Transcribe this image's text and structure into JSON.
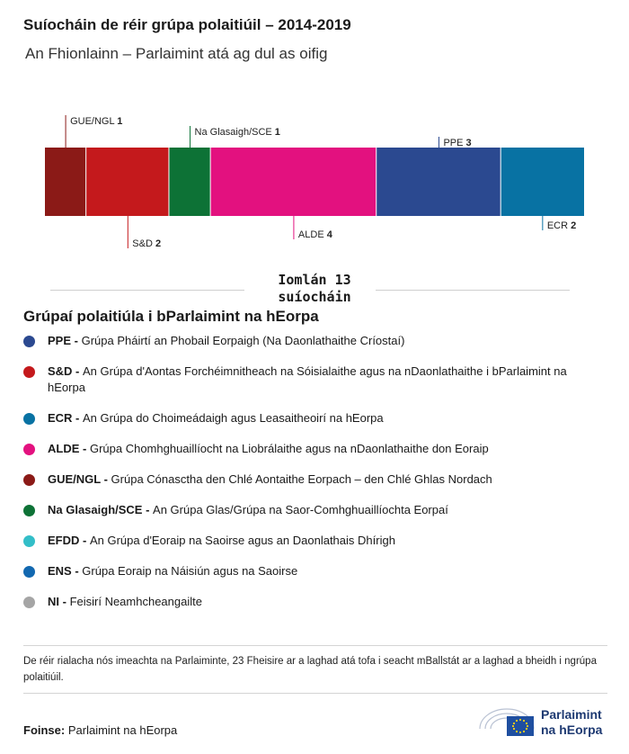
{
  "title": "Suíocháin de réir grúpa polaitiúil – 2014-2019",
  "subtitle": "An Fhionlainn – Parlaimint atá ag dul as oifig",
  "total": {
    "line1": "Iomlán 13",
    "line2": "suíocháin"
  },
  "chart_data": {
    "type": "bar",
    "orientation": "horizontal-stacked",
    "total": 13,
    "series": [
      {
        "name": "GUE/NGL",
        "value": 1,
        "color": "#8b1a17",
        "label_side": "top"
      },
      {
        "name": "S&D",
        "value": 2,
        "color": "#c4191c",
        "label_side": "bottom"
      },
      {
        "name": "Na Glasaigh/SCE",
        "value": 1,
        "color": "#0d7236",
        "label_side": "top"
      },
      {
        "name": "ALDE",
        "value": 4,
        "color": "#e3117f",
        "label_side": "bottom"
      },
      {
        "name": "PPE",
        "value": 3,
        "color": "#2b4990",
        "label_side": "top"
      },
      {
        "name": "ECR",
        "value": 2,
        "color": "#0872a3",
        "label_side": "bottom"
      }
    ]
  },
  "legend": {
    "title": "Grúpaí polaitiúla i bParlaimint na hEorpa",
    "items": [
      {
        "abbr": "PPE -",
        "text": "Grúpa Pháirtí an Phobail Eorpaigh (Na Daonlathaithe Críostaí)",
        "color": "#2b4990"
      },
      {
        "abbr": "S&D -",
        "text": "An Grúpa d'Aontas Forchéimnitheach na Sóisialaithe agus na nDaonlathaithe i bParlaimint na hEorpa",
        "color": "#c4191c"
      },
      {
        "abbr": "ECR -",
        "text": "An Grúpa do Choimeádaigh agus Leasaitheoirí na hEorpa",
        "color": "#0872a3"
      },
      {
        "abbr": "ALDE -",
        "text": "Grúpa Chomhghuaillíocht na Liobrálaithe agus na nDaonlathaithe don Eoraip",
        "color": "#e3117f"
      },
      {
        "abbr": "GUE/NGL -",
        "text": "Grúpa Cónasctha den Chlé Aontaithe Eorpach – den Chlé Ghlas Nordach",
        "color": "#8b1a17"
      },
      {
        "abbr": "Na Glasaigh/SCE -",
        "text": "An Grúpa Glas/Grúpa na Saor-Comhghuaillíochta Eorpaí",
        "color": "#0d7236"
      },
      {
        "abbr": "EFDD -",
        "text": "An Grúpa d'Eoraip na Saoirse agus an Daonlathais Dhírigh",
        "color": "#33bec8"
      },
      {
        "abbr": "ENS -",
        "text": "Grúpa Eoraip na Náisiún agus na Saoirse",
        "color": "#1268b0"
      },
      {
        "abbr": "NI -",
        "text": "Feisirí Neamhcheangailte",
        "color": "#a5a5a5"
      }
    ]
  },
  "note": "De réir rialacha nós imeachta na Parlaiminte, 23 Fheisire ar a laghad atá tofa i seacht mBallstát ar a laghad a bheidh i ngrúpa polaitiúil.",
  "source": {
    "label": "Foinse:",
    "value": "Parlaimint na hEorpa"
  },
  "logo": {
    "line1": "Parlaimint",
    "line2": "na hEorpa",
    "colors": {
      "flag": "#1f4fa0",
      "stars": "#f7d117",
      "text": "#1e3a72"
    }
  }
}
